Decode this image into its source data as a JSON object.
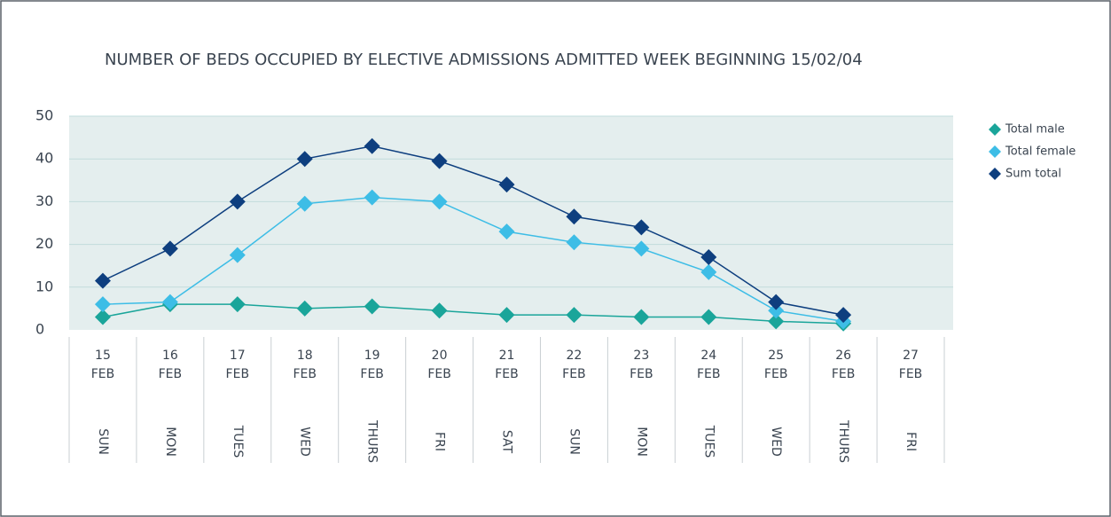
{
  "chart_data": {
    "type": "line",
    "title": "NUMBER OF BEDS OCCUPIED BY ELECTIVE ADMISSIONS ADMITTED WEEK BEGINNING 15/02/04",
    "categories": [
      "15",
      "16",
      "17",
      "18",
      "19",
      "20",
      "21",
      "22",
      "23",
      "24",
      "25",
      "26",
      "27"
    ],
    "category_months": [
      "FEB",
      "FEB",
      "FEB",
      "FEB",
      "FEB",
      "FEB",
      "FEB",
      "FEB",
      "FEB",
      "FEB",
      "FEB",
      "FEB",
      "FEB"
    ],
    "weekdays": [
      "SUN",
      "MON",
      "TUES",
      "WED",
      "THURS",
      "FRI",
      "SAT",
      "SUN",
      "MON",
      "TUES",
      "WED",
      "THURS",
      "FRI"
    ],
    "series": [
      {
        "name": "Total male",
        "color": "#1aa59a",
        "values": [
          3,
          6,
          6,
          5,
          5.5,
          4.5,
          3.5,
          3.5,
          3,
          3,
          2,
          1.5,
          null
        ]
      },
      {
        "name": "Total female",
        "color": "#3dbde6",
        "values": [
          6,
          6.5,
          17.5,
          29.5,
          31,
          30,
          23,
          20.5,
          19,
          13.5,
          4.5,
          2,
          null
        ]
      },
      {
        "name": "Sum total",
        "color": "#0e3f7f",
        "values": [
          11.5,
          19,
          30,
          40,
          43,
          39.5,
          34,
          26.5,
          24,
          17,
          6.5,
          3.5,
          null
        ]
      }
    ],
    "ylim": [
      0,
      50
    ],
    "yticks": [
      0,
      10,
      20,
      30,
      40,
      50
    ],
    "grid": true,
    "legend": "right"
  }
}
